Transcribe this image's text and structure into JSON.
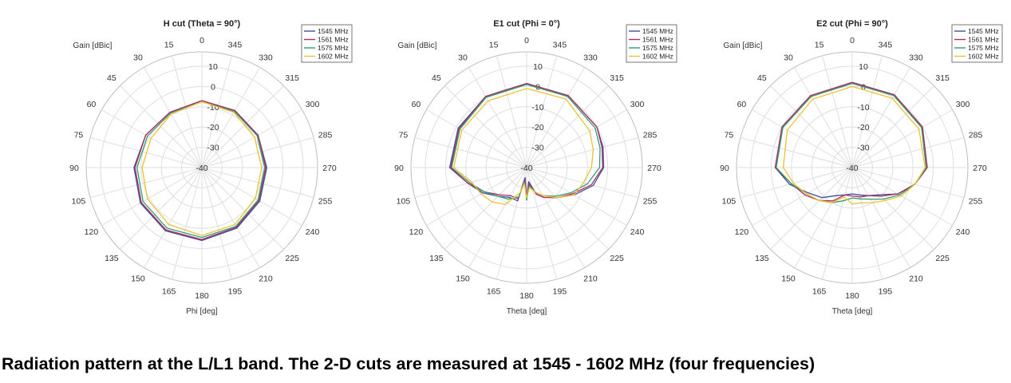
{
  "caption": "Radiation pattern at the L/L1 band. The 2-D cuts are measured at 1545 - 1602 MHz (four frequencies)",
  "colors": {
    "1545 MHz": "#3b4fa0",
    "1561 MHz": "#b52a5e",
    "1575 MHz": "#2e9e72",
    "1602 MHz": "#f0c030"
  },
  "chart_data": [
    {
      "type": "polar",
      "title": "H cut (Theta = 90°)",
      "rlabel": "Gain [dBic]",
      "thetalabel": "Phi [deg]",
      "rlim": [
        -40,
        10
      ],
      "r_ticks": [
        -40,
        -30,
        -20,
        -10,
        0,
        10
      ],
      "theta_ticks": [
        0,
        15,
        30,
        45,
        60,
        75,
        90,
        105,
        120,
        135,
        150,
        165,
        180,
        195,
        210,
        225,
        240,
        255,
        270,
        285,
        300,
        315,
        330,
        345
      ],
      "theta_direction": "counterclockwise",
      "theta_zero": "top",
      "grid": true,
      "legend": "top-right",
      "angles": [
        0,
        30,
        60,
        90,
        120,
        150,
        180,
        210,
        240,
        270,
        300,
        330
      ],
      "series": [
        {
          "name": "1545 MHz",
          "values": [
            -7,
            -8.5,
            -8,
            -6.5,
            -5,
            -4,
            -4,
            -5.5,
            -7,
            -8,
            -8,
            -7.5
          ]
        },
        {
          "name": "1561 MHz",
          "values": [
            -7,
            -8.5,
            -8,
            -7,
            -5.5,
            -4.5,
            -4.5,
            -6,
            -7.5,
            -8.5,
            -8,
            -7.5
          ]
        },
        {
          "name": "1575 MHz",
          "values": [
            -7.5,
            -9,
            -9,
            -8,
            -6.5,
            -5.5,
            -5.5,
            -6.5,
            -8,
            -9,
            -8.5,
            -8
          ]
        },
        {
          "name": "1602 MHz",
          "values": [
            -7.5,
            -9.5,
            -11,
            -10.5,
            -9,
            -7.5,
            -6.5,
            -7.5,
            -9.5,
            -10.5,
            -10,
            -8.5
          ]
        }
      ]
    },
    {
      "type": "polar",
      "title": "E1 cut (Phi = 0°)",
      "rlabel": "Gain [dBic]",
      "thetalabel": "Theta [deg]",
      "rlim": [
        -40,
        10
      ],
      "r_ticks": [
        -40,
        -30,
        -20,
        -10,
        0,
        10
      ],
      "theta_ticks": [
        0,
        15,
        30,
        45,
        60,
        75,
        90,
        105,
        120,
        135,
        150,
        165,
        180,
        195,
        210,
        225,
        240,
        255,
        270,
        285,
        300,
        315,
        330,
        345
      ],
      "theta_direction": "counterclockwise",
      "theta_zero": "top",
      "grid": true,
      "legend": "top-right",
      "angles": [
        0,
        30,
        60,
        90,
        105,
        120,
        135,
        150,
        165,
        172,
        180,
        188,
        200,
        210,
        225,
        240,
        255,
        270,
        285,
        300,
        330
      ],
      "series": [
        {
          "name": "1545 MHz",
          "values": [
            1.5,
            0.5,
            -1,
            -2,
            -10,
            -15,
            -20,
            -23,
            -23,
            -35,
            -24,
            -33,
            -26,
            -23,
            -19,
            -13,
            -6,
            -2,
            -1,
            0,
            1
          ]
        },
        {
          "name": "1561 MHz",
          "values": [
            1.5,
            0.5,
            -1.5,
            -2.5,
            -10,
            -16,
            -21,
            -24,
            -24,
            -34,
            -25,
            -32,
            -26,
            -23,
            -19,
            -14,
            -7,
            -2.5,
            -1.5,
            0,
            1
          ]
        },
        {
          "name": "1575 MHz",
          "values": [
            1,
            0,
            -2,
            -3,
            -11,
            -16,
            -20,
            -22,
            -25,
            -33,
            -24,
            -31,
            -27,
            -24,
            -20,
            -15,
            -9,
            -4,
            -2.5,
            -1,
            0.5
          ]
        },
        {
          "name": "1602 MHz",
          "values": [
            -1,
            -2,
            -3,
            -4,
            -12,
            -14,
            -16,
            -19,
            -27,
            -32,
            -25,
            -30,
            -27,
            -24,
            -19,
            -13,
            -11,
            -8,
            -6,
            -4,
            -1
          ]
        }
      ]
    },
    {
      "type": "polar",
      "title": "E2 cut (Phi = 90°)",
      "rlabel": "Gain [dBic]",
      "thetalabel": "Theta [deg]",
      "rlim": [
        -40,
        10
      ],
      "r_ticks": [
        -40,
        -30,
        -20,
        -10,
        0,
        10
      ],
      "theta_ticks": [
        0,
        15,
        30,
        45,
        60,
        75,
        90,
        105,
        120,
        135,
        150,
        165,
        180,
        195,
        210,
        225,
        240,
        255,
        270,
        285,
        300,
        315,
        330,
        345
      ],
      "theta_direction": "counterclockwise",
      "theta_zero": "top",
      "grid": true,
      "legend": "top-right",
      "angles": [
        0,
        30,
        60,
        90,
        105,
        120,
        135,
        150,
        165,
        180,
        195,
        210,
        225,
        240,
        255,
        270,
        300,
        330
      ],
      "series": [
        {
          "name": "1545 MHz",
          "values": [
            2,
            1,
            0,
            -2,
            -8,
            -15,
            -19,
            -24,
            -26,
            -27,
            -26,
            -24,
            -21,
            -14,
            -8,
            -3,
            0,
            1.5
          ]
        },
        {
          "name": "1561 MHz",
          "values": [
            2,
            1,
            0,
            -2,
            -9,
            -13,
            -17,
            -21,
            -26,
            -26,
            -25,
            -24,
            -20,
            -14,
            -8,
            -3,
            0,
            1.5
          ]
        },
        {
          "name": "1575 MHz",
          "values": [
            1.5,
            0.5,
            -0.5,
            -2.5,
            -9,
            -14,
            -17,
            -20,
            -23,
            -25,
            -24,
            -22,
            -18,
            -13,
            -8,
            -3.5,
            -0.5,
            1
          ]
        },
        {
          "name": "1602 MHz",
          "values": [
            0,
            -1,
            -3,
            -6,
            -10,
            -14,
            -17,
            -20,
            -25,
            -22,
            -22,
            -20,
            -17,
            -12,
            -8,
            -4,
            -2,
            -0.5
          ]
        }
      ]
    }
  ]
}
